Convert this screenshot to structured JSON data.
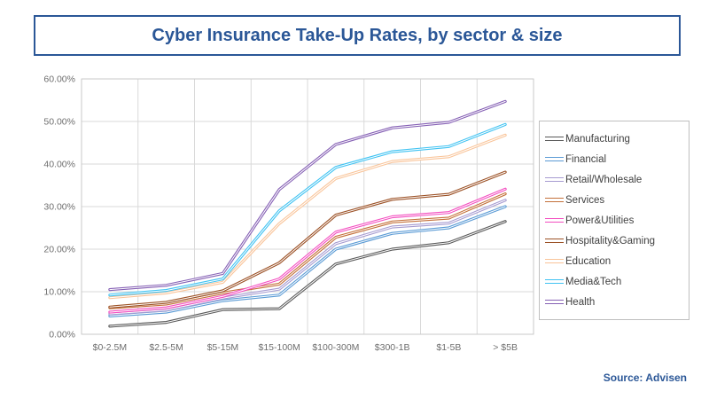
{
  "title": {
    "text": "Cyber Insurance Take-Up Rates, by sector & size"
  },
  "source": {
    "text": "Source: Advisen"
  },
  "colors": {
    "accent_blue": "#2B5797",
    "grid": "#D9D9D9",
    "plot_border": "#C9C9C9",
    "axis_text": "#6E6E6E"
  },
  "chart_data": {
    "type": "line",
    "title": "Cyber Insurance Take-Up Rates, by sector & size",
    "xlabel": "",
    "ylabel": "",
    "ylim": [
      0,
      60
    ],
    "ytick_step": 10,
    "ytick_labels": [
      "0.00%",
      "10.00%",
      "20.00%",
      "30.00%",
      "40.00%",
      "50.00%",
      "60.00%"
    ],
    "grid": true,
    "legend_position": "right",
    "categories": [
      "$0-2.5M",
      "$2.5-5M",
      "$5-15M",
      "$15-100M",
      "$100-300M",
      "$300-1B",
      "$1-5B",
      "> $5B"
    ],
    "series": [
      {
        "name": "Manufacturing",
        "color": "#595959",
        "values": [
          1.9,
          2.8,
          5.8,
          6.0,
          16.5,
          20.0,
          21.5,
          26.5
        ]
      },
      {
        "name": "Financial",
        "color": "#5B9BD5",
        "values": [
          4.3,
          5.2,
          7.9,
          9.2,
          20.0,
          23.7,
          25.0,
          30.0
        ]
      },
      {
        "name": "Retail/Wholesale",
        "color": "#A69BD1",
        "values": [
          4.8,
          5.7,
          8.5,
          10.6,
          21.3,
          25.2,
          26.1,
          31.5
        ]
      },
      {
        "name": "Services",
        "color": "#C4713B",
        "values": [
          6.2,
          7.1,
          9.7,
          11.8,
          22.8,
          26.4,
          27.3,
          33.0
        ]
      },
      {
        "name": "Power&Utilities",
        "color": "#F34FC0",
        "values": [
          5.2,
          6.2,
          8.9,
          13.0,
          24.0,
          27.6,
          28.6,
          34.1
        ]
      },
      {
        "name": "Hospitality&Gaming",
        "color": "#9C5227",
        "values": [
          6.4,
          7.5,
          10.2,
          16.8,
          28.0,
          31.7,
          32.9,
          38.1
        ]
      },
      {
        "name": "Education",
        "color": "#F9C499",
        "values": [
          8.6,
          9.7,
          12.2,
          26.0,
          36.6,
          40.6,
          41.7,
          46.8
        ]
      },
      {
        "name": "Media&Tech",
        "color": "#41C3F2",
        "values": [
          9.2,
          10.3,
          13.0,
          29.0,
          39.2,
          42.9,
          44.1,
          49.3
        ]
      },
      {
        "name": "Health",
        "color": "#8661B5",
        "values": [
          10.5,
          11.5,
          14.3,
          34.0,
          44.6,
          48.5,
          49.8,
          54.7
        ]
      }
    ]
  }
}
